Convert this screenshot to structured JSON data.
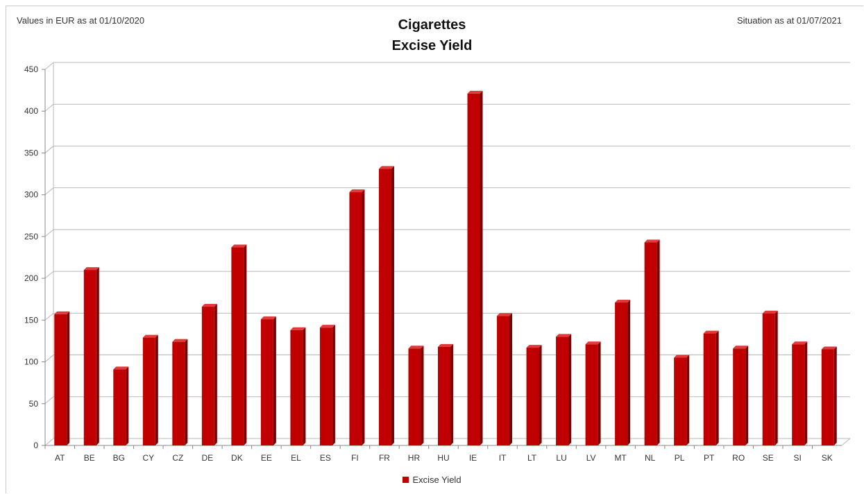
{
  "header": {
    "left_note": "Values in EUR as at 01/10/2020",
    "right_note": "Situation as at 01/07/2021"
  },
  "chart_data": {
    "type": "bar",
    "title": "Cigarettes",
    "subtitle": "Excise Yield",
    "categories": [
      "AT",
      "BE",
      "BG",
      "CY",
      "CZ",
      "DE",
      "DK",
      "EE",
      "EL",
      "ES",
      "FI",
      "FR",
      "HR",
      "HU",
      "IE",
      "IT",
      "LT",
      "LU",
      "LV",
      "MT",
      "NL",
      "PL",
      "PT",
      "RO",
      "SE",
      "SI",
      "SK"
    ],
    "series": [
      {
        "name": "Excise Yield",
        "values": [
          157,
          210,
          91,
          129,
          124,
          166,
          237,
          151,
          138,
          141,
          303,
          331,
          116,
          118,
          421,
          155,
          117,
          130,
          121,
          171,
          243,
          105,
          134,
          116,
          158,
          121,
          115
        ],
        "color": "#c00000"
      }
    ],
    "ylim": [
      0,
      450
    ],
    "yticks": [
      "0",
      "50",
      "100",
      "150",
      "200",
      "250",
      "300",
      "350",
      "400",
      "450"
    ],
    "grid": true,
    "legend_position": "bottom"
  }
}
